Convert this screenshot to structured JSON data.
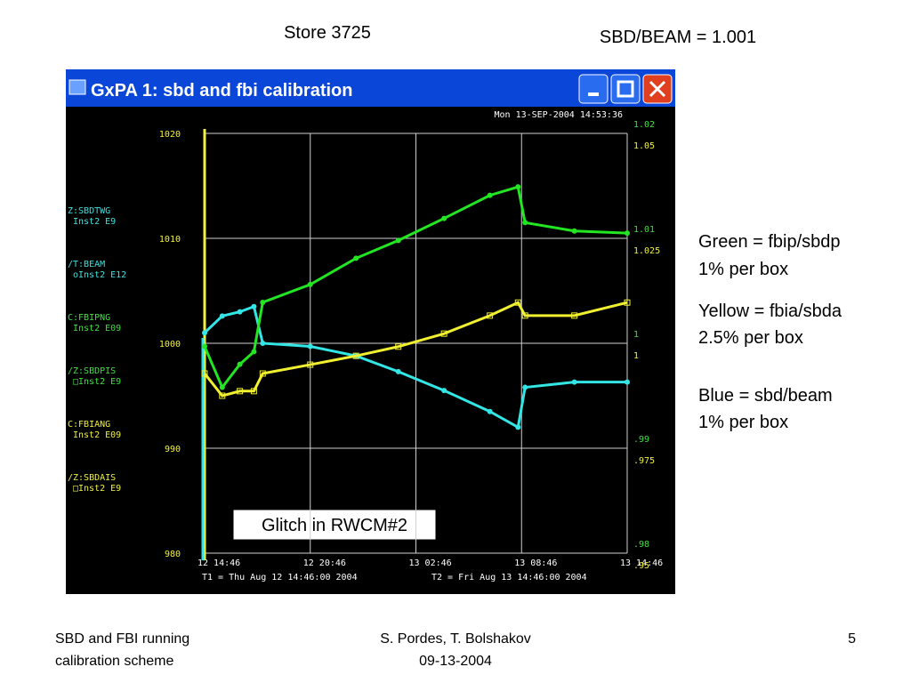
{
  "slide": {
    "title": "Store 3725",
    "ratio": "SBD/BEAM = 1.001",
    "notes": [
      "Green = fbip/sbdp",
      "1% per box",
      "Yellow = fbia/sbda",
      "2.5% per box",
      "Blue = sbd/beam",
      "1% per box"
    ],
    "annotation": "Glitch in RWCM#2",
    "footer_left": [
      "SBD and FBI running",
      "calibration scheme"
    ],
    "footer_center": [
      "S. Pordes, T. Bolshakov",
      "09-13-2004"
    ],
    "page_number": "5"
  },
  "window": {
    "title": "GxPA 1: sbd and fbi calibration",
    "timestamp": "Mon 13-SEP-2004 14:53:36",
    "channels": [
      {
        "name": "Z:SBDTWG",
        "info": "Inst2 E9",
        "color": "#40e0e0"
      },
      {
        "name": "/T:BEAM",
        "info": "oInst2 E12",
        "color": "#40e0e0"
      },
      {
        "name": "C:FBIPNG",
        "info": "Inst2 E09",
        "color": "#40e040"
      },
      {
        "name": "/Z:SBDPIS",
        "info": "□Inst2 E9",
        "color": "#40e040"
      },
      {
        "name": "C:FBIANG",
        "info": "Inst2 E09",
        "color": "#f0f040"
      },
      {
        "name": "/Z:SBDAIS",
        "info": "□Inst2 E9",
        "color": "#f0f040"
      }
    ],
    "t1": "T1 = Thu Aug 12 14:46:00 2004",
    "t2": "T2 = Fri Aug 13 14:46:00 2004"
  },
  "chart_data": {
    "type": "line",
    "x": [
      0,
      1,
      2,
      2.8,
      3.3,
      6,
      8.6,
      11,
      13.6,
      16.2,
      17.8,
      18.2,
      21,
      24
    ],
    "xlim": [
      0,
      24
    ],
    "xticks": [
      {
        "value": 0,
        "label": "12 14:46"
      },
      {
        "value": 6,
        "label": "12 20:46"
      },
      {
        "value": 12,
        "label": "13 02:46"
      },
      {
        "value": 18,
        "label": "13 08:46"
      },
      {
        "value": 24,
        "label": "13 14:46"
      }
    ],
    "ylim": [
      980,
      1020
    ],
    "yticks": [
      980,
      990,
      1000,
      1010,
      1020
    ],
    "y2lim": [
      0.98,
      1.02
    ],
    "y2ticks": [
      {
        "value": 0.98,
        "label": ".98"
      },
      {
        "value": 0.99,
        "label": ".99"
      },
      1,
      1.01,
      1.02
    ],
    "y3lim": [
      0.95,
      1.05
    ],
    "y3ticks": [
      {
        "value": 0.95,
        "label": ".95"
      },
      {
        "value": 0.975,
        "label": ".975"
      },
      1,
      1.025,
      1.05
    ],
    "grid": true,
    "series": [
      {
        "color": "#33e6e6",
        "axis": "y",
        "values": [
          1001,
          1002.6,
          1003,
          1003.5,
          1000,
          999.7,
          998.8,
          997.3,
          995.5,
          993.5,
          992,
          995.8,
          996.3,
          996.3
        ]
      },
      {
        "color": "#22e622",
        "axis": "y2",
        "values": [
          0.9997,
          0.9958,
          0.998,
          0.9992,
          1.0039,
          1.0056,
          1.0081,
          1.0098,
          1.0119,
          1.0141,
          1.0149,
          1.0115,
          1.0107,
          1.0105
        ]
      },
      {
        "color": "#f0f030",
        "axis": "y3",
        "values": [
          0.9928,
          0.9875,
          0.9886,
          0.9886,
          0.9928,
          0.9949,
          0.997,
          0.9992,
          1.0023,
          1.0066,
          1.0097,
          1.0066,
          1.0066,
          1.0097
        ]
      }
    ]
  }
}
